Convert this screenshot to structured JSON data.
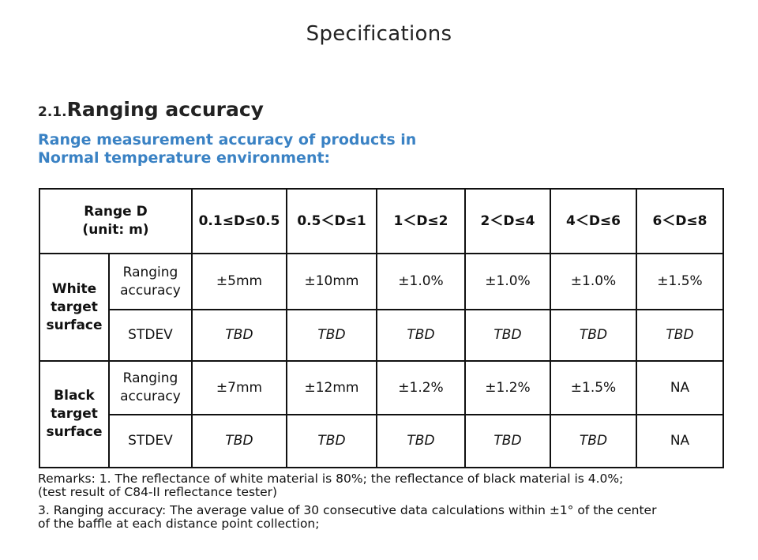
{
  "page": {
    "title": "Specifications"
  },
  "section": {
    "number": "2.1.",
    "title": "Ranging accuracy",
    "subtitle_line1": "Range measurement accuracy of products in",
    "subtitle_line2": "Normal temperature environment:"
  },
  "table": {
    "header": {
      "range_line1": "Range D",
      "range_line2": "(unit: m)",
      "columns": [
        "0.1≤D≤0.5",
        "0.5＜D≤1",
        "1＜D≤2",
        "2＜D≤4",
        "4＜D≤6",
        "6＜D≤8"
      ]
    },
    "groups": [
      {
        "label_lines": [
          "White",
          "target",
          "surface"
        ],
        "rows": [
          {
            "label_lines": [
              "Ranging",
              "accuracy"
            ],
            "values": [
              "±5mm",
              "±10mm",
              "±1.0%",
              "±1.0%",
              "±1.0%",
              "±1.5%"
            ]
          },
          {
            "label_lines": [
              "STDEV"
            ],
            "values": [
              "TBD",
              "TBD",
              "TBD",
              "TBD",
              "TBD",
              "TBD"
            ]
          }
        ]
      },
      {
        "label_lines": [
          "Black",
          "target",
          "surface"
        ],
        "rows": [
          {
            "label_lines": [
              "Ranging",
              "accuracy"
            ],
            "values": [
              "±7mm",
              "±12mm",
              "±1.2%",
              "±1.2%",
              "±1.5%",
              "NA"
            ]
          },
          {
            "label_lines": [
              "STDEV"
            ],
            "values": [
              "TBD",
              "TBD",
              "TBD",
              "TBD",
              "TBD",
              "NA"
            ]
          }
        ]
      }
    ]
  },
  "remarks": {
    "line1": "Remarks: 1. The reflectance of white material is 80%; the reflectance of black material is 4.0%;",
    "line2": "(test result of C84-II reflectance tester)",
    "line3": "3. Ranging accuracy: The average value of 30 consecutive data calculations within ±1° of the center",
    "line4": "of the baffle at each distance point collection;"
  },
  "colors": {
    "subtitle": "#3a82c4",
    "tbd": "#5b8fd6",
    "na": "#e8a05a",
    "border": "#111111"
  }
}
